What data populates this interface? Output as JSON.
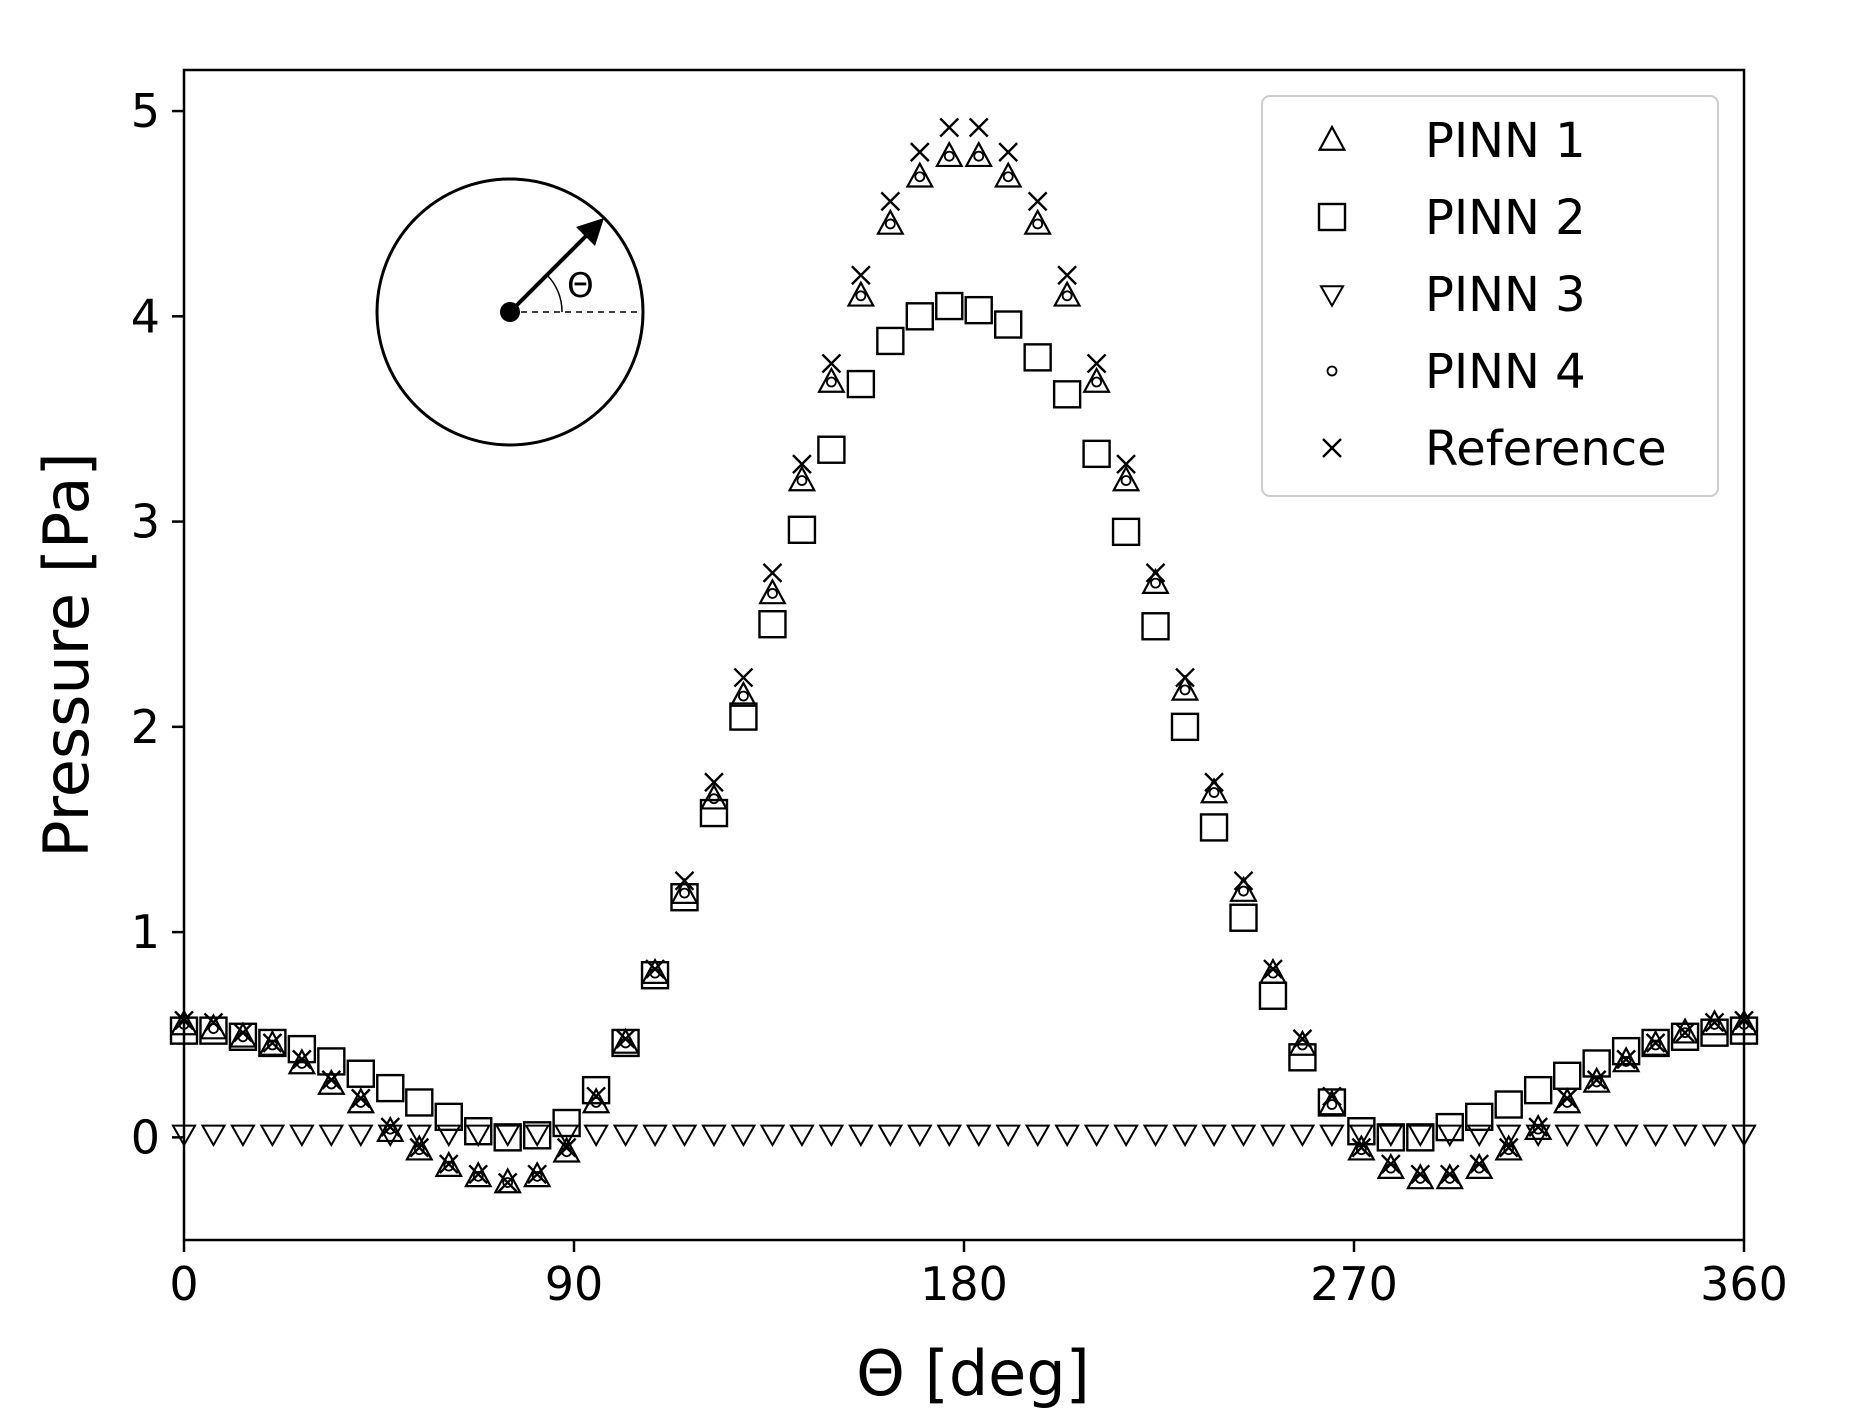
{
  "chart_data": {
    "type": "scatter",
    "xlabel": "Θ [deg]",
    "ylabel": "Pressure [Pa]",
    "xlim": [
      0,
      360
    ],
    "ylim": [
      -0.5,
      5.2
    ],
    "xticks": [
      0,
      90,
      180,
      270,
      360
    ],
    "yticks": [
      0,
      1,
      2,
      3,
      4,
      5
    ],
    "grid": false,
    "legend_position": "top-right",
    "inset": {
      "angle_label": "Θ"
    },
    "x": [
      0,
      6.8,
      13.6,
      20.4,
      27.2,
      34,
      40.8,
      47.6,
      54.3,
      61.1,
      67.9,
      74.7,
      81.5,
      88.3,
      95.1,
      101.9,
      108.7,
      115.5,
      122.3,
      129.1,
      135.8,
      142.6,
      149.4,
      156.2,
      163,
      169.8,
      176.6,
      183.4,
      190.2,
      197,
      203.8,
      210.6,
      217.4,
      224.2,
      231,
      237.7,
      244.5,
      251.3,
      258.1,
      264.9,
      271.7,
      278.5,
      285.3,
      292.1,
      298.9,
      305.7,
      312.5,
      319.2,
      326,
      332.8,
      339.6,
      346.4,
      353.2,
      360
    ],
    "series": [
      {
        "name": "PINN 1",
        "marker": "triangle-up",
        "values": [
          0.55,
          0.53,
          0.49,
          0.45,
          0.36,
          0.26,
          0.17,
          0.03,
          -0.06,
          -0.14,
          -0.19,
          -0.22,
          -0.19,
          -0.07,
          0.17,
          0.46,
          0.8,
          1.19,
          1.65,
          2.15,
          2.65,
          3.2,
          3.68,
          4.1,
          4.45,
          4.68,
          4.78,
          4.78,
          4.68,
          4.45,
          4.1,
          3.68,
          3.2,
          2.7,
          2.18,
          1.68,
          1.2,
          0.8,
          0.45,
          0.16,
          -0.06,
          -0.15,
          -0.2,
          -0.2,
          -0.15,
          -0.06,
          0.04,
          0.17,
          0.27,
          0.37,
          0.45,
          0.51,
          0.55,
          0.55
        ]
      },
      {
        "name": "PINN 2",
        "marker": "square",
        "values": [
          0.52,
          0.52,
          0.49,
          0.46,
          0.43,
          0.37,
          0.31,
          0.24,
          0.17,
          0.1,
          0.03,
          0.0,
          0.01,
          0.07,
          0.23,
          0.46,
          0.79,
          1.17,
          1.58,
          2.05,
          2.5,
          2.96,
          3.35,
          3.67,
          3.88,
          4.0,
          4.05,
          4.03,
          3.96,
          3.8,
          3.62,
          3.33,
          2.95,
          2.49,
          2.0,
          1.51,
          1.07,
          0.69,
          0.39,
          0.17,
          0.03,
          0.0,
          0.0,
          0.05,
          0.1,
          0.16,
          0.23,
          0.3,
          0.36,
          0.42,
          0.46,
          0.49,
          0.51,
          0.52
        ]
      },
      {
        "name": "PINN 3",
        "marker": "triangle-down",
        "values": [
          0,
          0,
          0,
          0,
          0,
          0,
          0,
          0,
          0,
          0,
          0,
          0,
          0,
          0,
          0,
          0,
          0,
          0,
          0,
          0,
          0,
          0,
          0,
          0,
          0,
          0,
          0,
          0,
          0,
          0,
          0,
          0,
          0,
          0,
          0,
          0,
          0,
          0,
          0,
          0,
          0,
          0,
          0,
          0,
          0,
          0,
          0,
          0,
          0,
          0,
          0,
          0,
          0,
          0
        ]
      },
      {
        "name": "PINN 4",
        "marker": "circle",
        "values": [
          0.55,
          0.53,
          0.49,
          0.45,
          0.36,
          0.26,
          0.17,
          0.04,
          -0.06,
          -0.14,
          -0.19,
          -0.22,
          -0.19,
          -0.07,
          0.17,
          0.46,
          0.8,
          1.19,
          1.65,
          2.15,
          2.65,
          3.2,
          3.68,
          4.1,
          4.45,
          4.68,
          4.78,
          4.78,
          4.68,
          4.45,
          4.1,
          3.68,
          3.2,
          2.7,
          2.18,
          1.68,
          1.2,
          0.8,
          0.45,
          0.16,
          -0.06,
          -0.15,
          -0.2,
          -0.2,
          -0.15,
          -0.06,
          0.04,
          0.17,
          0.27,
          0.37,
          0.45,
          0.51,
          0.55,
          0.55
        ]
      },
      {
        "name": "Reference",
        "marker": "x",
        "values": [
          0.57,
          0.56,
          0.51,
          0.46,
          0.38,
          0.28,
          0.19,
          0.05,
          -0.05,
          -0.13,
          -0.18,
          -0.22,
          -0.18,
          -0.05,
          0.2,
          0.48,
          0.82,
          1.25,
          1.73,
          2.24,
          2.75,
          3.28,
          3.77,
          4.2,
          4.56,
          4.8,
          4.92,
          4.92,
          4.8,
          4.56,
          4.2,
          3.77,
          3.28,
          2.75,
          2.24,
          1.73,
          1.25,
          0.82,
          0.48,
          0.2,
          -0.05,
          -0.13,
          -0.18,
          -0.18,
          -0.13,
          -0.05,
          0.05,
          0.19,
          0.28,
          0.38,
          0.46,
          0.51,
          0.56,
          0.57
        ]
      }
    ]
  }
}
